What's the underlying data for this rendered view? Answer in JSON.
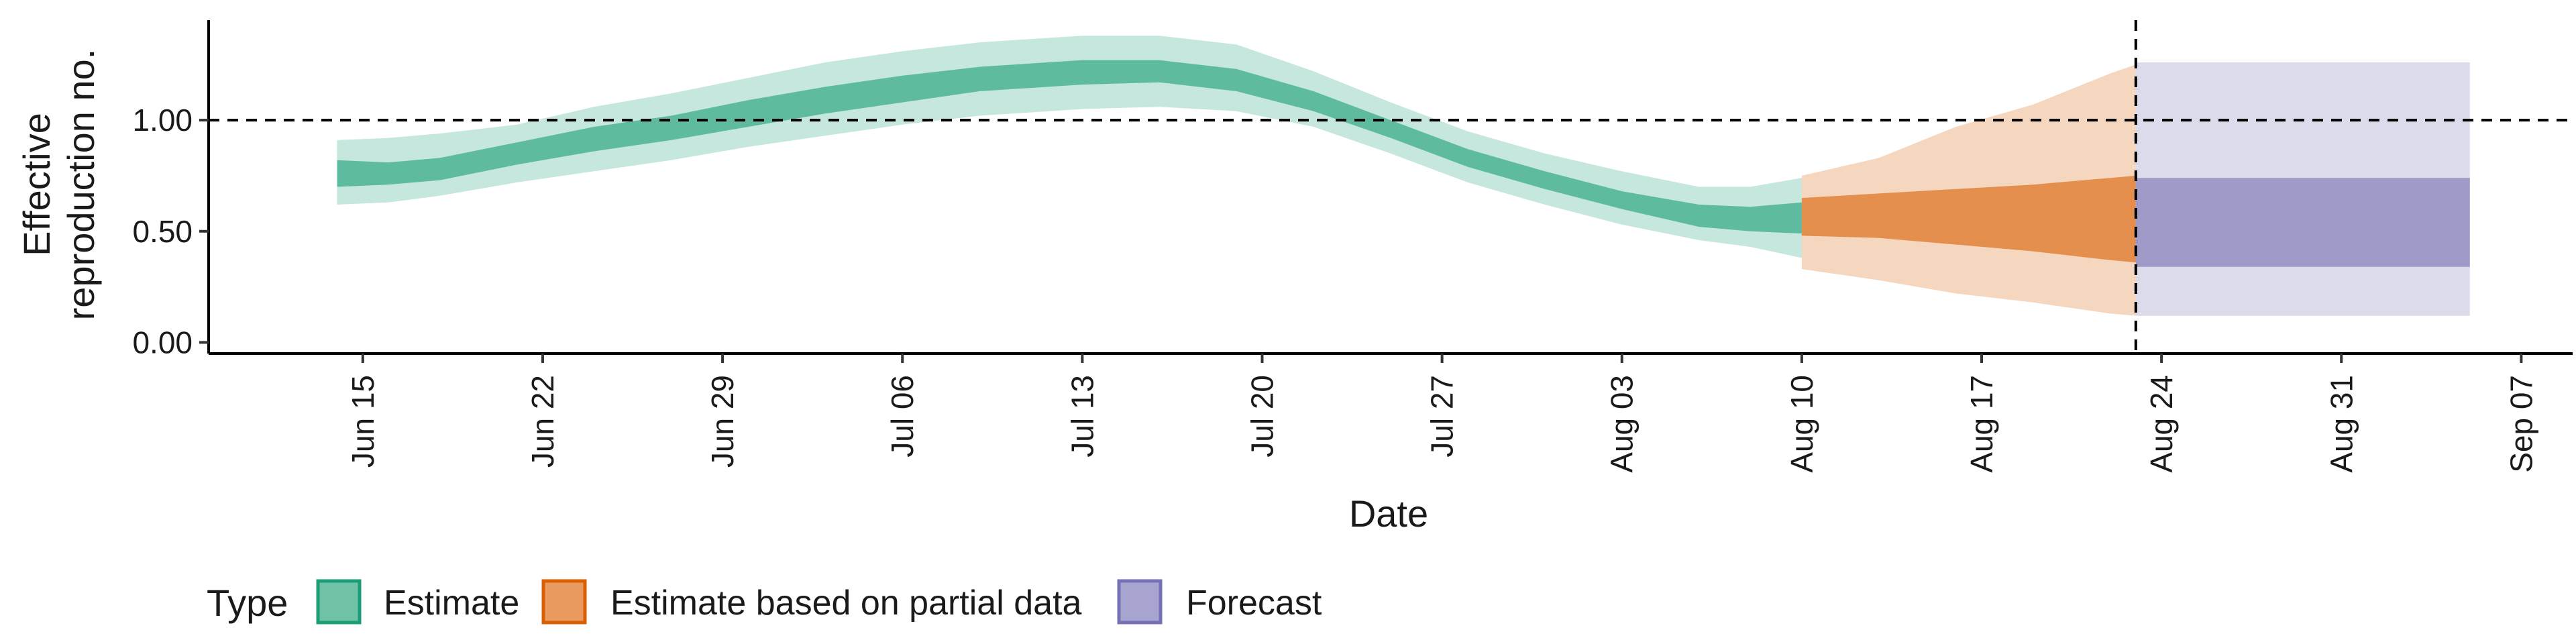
{
  "chart_data": {
    "type": "area",
    "xlabel": "Date",
    "ylabel_lines": [
      "Effective",
      "reproduction no."
    ],
    "x_ticks": [
      "Jun 15",
      "Jun 22",
      "Jun 29",
      "Jul 06",
      "Jul 13",
      "Jul 20",
      "Jul 27",
      "Aug 03",
      "Aug 10",
      "Aug 17",
      "Aug 24",
      "Aug 31",
      "Sep 07"
    ],
    "x_tick_dates": [
      "2020-06-15",
      "2020-06-22",
      "2020-06-29",
      "2020-07-06",
      "2020-07-13",
      "2020-07-20",
      "2020-07-27",
      "2020-08-03",
      "2020-08-10",
      "2020-08-17",
      "2020-08-24",
      "2020-08-31",
      "2020-09-07"
    ],
    "y_ticks": [
      "0.00",
      "0.50",
      "1.00"
    ],
    "y_tick_values": [
      0,
      0.5,
      1.0
    ],
    "ylim": [
      -0.05,
      1.45
    ],
    "xlim": [
      "2020-06-09",
      "2020-09-09"
    ],
    "reference_line": {
      "y": 1.0,
      "style": "dashed"
    },
    "forecast_start": {
      "x": "2020-08-23",
      "style": "dashed"
    },
    "legend": {
      "title": "Type",
      "position": "bottom-left",
      "items": [
        {
          "label": "Estimate",
          "fill": "#6fc2a6",
          "border": "#1b9e77"
        },
        {
          "label": "Estimate based on partial data",
          "fill": "#e89a5f",
          "border": "#d95f02"
        },
        {
          "label": "Forecast",
          "fill": "#a7a5d0",
          "border": "#7570b3"
        }
      ]
    },
    "series": [
      {
        "name": "Estimate",
        "color": "#1b9e77",
        "points": [
          {
            "x": "2020-06-14",
            "lo90": 0.62,
            "lo50": 0.7,
            "hi50": 0.82,
            "hi90": 0.91
          },
          {
            "x": "2020-06-16",
            "lo90": 0.63,
            "lo50": 0.71,
            "hi50": 0.81,
            "hi90": 0.92
          },
          {
            "x": "2020-06-18",
            "lo90": 0.66,
            "lo50": 0.73,
            "hi50": 0.83,
            "hi90": 0.94
          },
          {
            "x": "2020-06-21",
            "lo90": 0.72,
            "lo50": 0.8,
            "hi50": 0.9,
            "hi90": 0.98
          },
          {
            "x": "2020-06-24",
            "lo90": 0.77,
            "lo50": 0.86,
            "hi50": 0.97,
            "hi90": 1.06
          },
          {
            "x": "2020-06-27",
            "lo90": 0.82,
            "lo50": 0.91,
            "hi50": 1.02,
            "hi90": 1.12
          },
          {
            "x": "2020-06-30",
            "lo90": 0.88,
            "lo50": 0.97,
            "hi50": 1.09,
            "hi90": 1.19
          },
          {
            "x": "2020-07-03",
            "lo90": 0.93,
            "lo50": 1.03,
            "hi50": 1.15,
            "hi90": 1.26
          },
          {
            "x": "2020-07-06",
            "lo90": 0.98,
            "lo50": 1.08,
            "hi50": 1.2,
            "hi90": 1.31
          },
          {
            "x": "2020-07-09",
            "lo90": 1.02,
            "lo50": 1.13,
            "hi50": 1.24,
            "hi90": 1.35
          },
          {
            "x": "2020-07-13",
            "lo90": 1.05,
            "lo50": 1.16,
            "hi50": 1.27,
            "hi90": 1.38
          },
          {
            "x": "2020-07-16",
            "lo90": 1.06,
            "lo50": 1.17,
            "hi50": 1.27,
            "hi90": 1.38
          },
          {
            "x": "2020-07-19",
            "lo90": 1.04,
            "lo50": 1.13,
            "hi50": 1.23,
            "hi90": 1.34
          },
          {
            "x": "2020-07-22",
            "lo90": 0.97,
            "lo50": 1.04,
            "hi50": 1.13,
            "hi90": 1.22
          },
          {
            "x": "2020-07-25",
            "lo90": 0.85,
            "lo50": 0.92,
            "hi50": 1.0,
            "hi90": 1.08
          },
          {
            "x": "2020-07-28",
            "lo90": 0.72,
            "lo50": 0.79,
            "hi50": 0.87,
            "hi90": 0.95
          },
          {
            "x": "2020-07-31",
            "lo90": 0.62,
            "lo50": 0.69,
            "hi50": 0.77,
            "hi90": 0.85
          },
          {
            "x": "2020-08-03",
            "lo90": 0.53,
            "lo50": 0.6,
            "hi50": 0.68,
            "hi90": 0.77
          },
          {
            "x": "2020-08-06",
            "lo90": 0.46,
            "lo50": 0.52,
            "hi50": 0.62,
            "hi90": 0.7
          },
          {
            "x": "2020-08-08",
            "lo90": 0.43,
            "lo50": 0.5,
            "hi50": 0.61,
            "hi90": 0.7
          },
          {
            "x": "2020-08-10",
            "lo90": 0.38,
            "lo50": 0.49,
            "hi50": 0.63,
            "hi90": 0.74
          }
        ]
      },
      {
        "name": "Estimate based on partial data",
        "color": "#d95f02",
        "points": [
          {
            "x": "2020-08-10",
            "lo90": 0.33,
            "lo50": 0.48,
            "hi50": 0.65,
            "hi90": 0.75
          },
          {
            "x": "2020-08-13",
            "lo90": 0.28,
            "lo50": 0.47,
            "hi50": 0.67,
            "hi90": 0.83
          },
          {
            "x": "2020-08-16",
            "lo90": 0.22,
            "lo50": 0.44,
            "hi50": 0.69,
            "hi90": 0.97
          },
          {
            "x": "2020-08-19",
            "lo90": 0.18,
            "lo50": 0.41,
            "hi50": 0.71,
            "hi90": 1.07
          },
          {
            "x": "2020-08-22",
            "lo90": 0.13,
            "lo50": 0.37,
            "hi50": 0.74,
            "hi90": 1.21
          },
          {
            "x": "2020-08-23",
            "lo90": 0.12,
            "lo50": 0.36,
            "hi50": 0.75,
            "hi90": 1.25
          }
        ]
      },
      {
        "name": "Forecast",
        "color": "#7570b3",
        "points": [
          {
            "x": "2020-08-23",
            "lo90": 0.12,
            "lo50": 0.34,
            "hi50": 0.74,
            "hi90": 1.26
          },
          {
            "x": "2020-09-05",
            "lo90": 0.12,
            "lo50": 0.34,
            "hi50": 0.74,
            "hi90": 1.26
          }
        ]
      }
    ]
  }
}
